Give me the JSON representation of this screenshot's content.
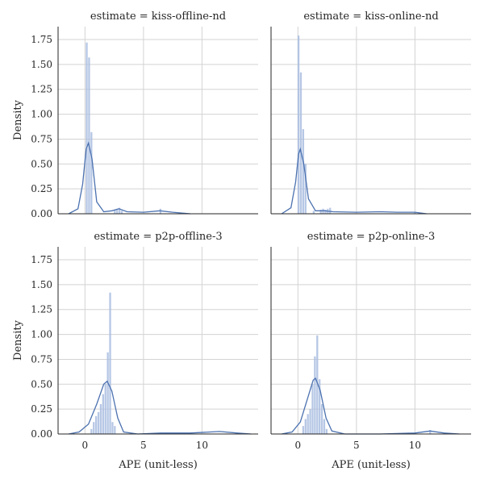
{
  "chart_data": {
    "type": "histogram-kde-facet",
    "xlabel": "APE (unit-less)",
    "ylabel": "Density",
    "xlim": [
      -2.3,
      14.8
    ],
    "ylim": [
      0,
      1.88
    ],
    "xticks": [
      0,
      5,
      10
    ],
    "yticks": [
      0.0,
      0.25,
      0.5,
      0.75,
      1.0,
      1.25,
      1.5,
      1.75
    ],
    "ytick_labels": [
      "0.00",
      "0.25",
      "0.50",
      "0.75",
      "1.00",
      "1.25",
      "1.50",
      "1.75"
    ],
    "grid": true,
    "bar_color": "#a9bde0",
    "line_color": "#4c72b0",
    "panels": [
      {
        "title": "estimate = kiss-offline-nd",
        "bins": [
          {
            "x0": 0.05,
            "x1": 0.25,
            "density": 1.72
          },
          {
            "x0": 0.25,
            "x1": 0.45,
            "density": 1.57
          },
          {
            "x0": 0.45,
            "x1": 0.65,
            "density": 0.82
          },
          {
            "x0": 2.45,
            "x1": 2.65,
            "density": 0.04
          },
          {
            "x0": 2.65,
            "x1": 2.85,
            "density": 0.05
          },
          {
            "x0": 2.85,
            "x1": 3.05,
            "density": 0.06
          },
          {
            "x0": 3.05,
            "x1": 3.25,
            "density": 0.03
          },
          {
            "x0": 6.35,
            "x1": 6.55,
            "density": 0.05
          }
        ],
        "kde": [
          {
            "x": -1.4,
            "y": 0.0
          },
          {
            "x": -0.6,
            "y": 0.05
          },
          {
            "x": -0.2,
            "y": 0.3
          },
          {
            "x": 0.1,
            "y": 0.65
          },
          {
            "x": 0.3,
            "y": 0.71
          },
          {
            "x": 0.6,
            "y": 0.55
          },
          {
            "x": 1.0,
            "y": 0.12
          },
          {
            "x": 1.6,
            "y": 0.02
          },
          {
            "x": 2.3,
            "y": 0.03
          },
          {
            "x": 2.9,
            "y": 0.05
          },
          {
            "x": 3.6,
            "y": 0.02
          },
          {
            "x": 5.0,
            "y": 0.015
          },
          {
            "x": 6.4,
            "y": 0.03
          },
          {
            "x": 7.5,
            "y": 0.015
          },
          {
            "x": 9.0,
            "y": 0.0
          }
        ]
      },
      {
        "title": "estimate = kiss-online-nd",
        "bins": [
          {
            "x0": -0.05,
            "x1": 0.15,
            "density": 1.79
          },
          {
            "x0": 0.15,
            "x1": 0.35,
            "density": 1.42
          },
          {
            "x0": 0.35,
            "x1": 0.55,
            "density": 0.85
          },
          {
            "x0": 0.55,
            "x1": 0.75,
            "density": 0.5
          },
          {
            "x0": 1.25,
            "x1": 1.45,
            "density": 0.03
          },
          {
            "x0": 1.85,
            "x1": 2.05,
            "density": 0.04
          },
          {
            "x0": 2.05,
            "x1": 2.25,
            "density": 0.05
          },
          {
            "x0": 2.25,
            "x1": 2.45,
            "density": 0.04
          },
          {
            "x0": 2.45,
            "x1": 2.65,
            "density": 0.05
          },
          {
            "x0": 2.65,
            "x1": 2.85,
            "density": 0.06
          },
          {
            "x0": 9.9,
            "x1": 10.1,
            "density": 0.02
          }
        ],
        "kde": [
          {
            "x": -1.4,
            "y": 0.0
          },
          {
            "x": -0.6,
            "y": 0.06
          },
          {
            "x": -0.2,
            "y": 0.32
          },
          {
            "x": 0.05,
            "y": 0.6
          },
          {
            "x": 0.2,
            "y": 0.65
          },
          {
            "x": 0.5,
            "y": 0.5
          },
          {
            "x": 0.9,
            "y": 0.15
          },
          {
            "x": 1.5,
            "y": 0.03
          },
          {
            "x": 2.3,
            "y": 0.03
          },
          {
            "x": 3.0,
            "y": 0.02
          },
          {
            "x": 5.0,
            "y": 0.015
          },
          {
            "x": 7.0,
            "y": 0.02
          },
          {
            "x": 8.5,
            "y": 0.015
          },
          {
            "x": 10.0,
            "y": 0.015
          },
          {
            "x": 11.0,
            "y": 0.0
          }
        ]
      },
      {
        "title": "estimate = p2p-offline-3",
        "bins": [
          {
            "x0": 0.45,
            "x1": 0.65,
            "density": 0.05
          },
          {
            "x0": 0.65,
            "x1": 0.85,
            "density": 0.12
          },
          {
            "x0": 0.85,
            "x1": 1.05,
            "density": 0.18
          },
          {
            "x0": 1.05,
            "x1": 1.25,
            "density": 0.22
          },
          {
            "x0": 1.25,
            "x1": 1.45,
            "density": 0.3
          },
          {
            "x0": 1.45,
            "x1": 1.65,
            "density": 0.4
          },
          {
            "x0": 1.65,
            "x1": 1.85,
            "density": 0.5
          },
          {
            "x0": 1.85,
            "x1": 2.05,
            "density": 0.82
          },
          {
            "x0": 2.05,
            "x1": 2.25,
            "density": 1.42
          },
          {
            "x0": 2.25,
            "x1": 2.45,
            "density": 0.12
          },
          {
            "x0": 2.45,
            "x1": 2.65,
            "density": 0.08
          }
        ],
        "kde": [
          {
            "x": -1.4,
            "y": 0.0
          },
          {
            "x": -0.5,
            "y": 0.02
          },
          {
            "x": 0.3,
            "y": 0.1
          },
          {
            "x": 1.0,
            "y": 0.3
          },
          {
            "x": 1.6,
            "y": 0.5
          },
          {
            "x": 1.9,
            "y": 0.53
          },
          {
            "x": 2.3,
            "y": 0.43
          },
          {
            "x": 2.8,
            "y": 0.16
          },
          {
            "x": 3.3,
            "y": 0.02
          },
          {
            "x": 4.5,
            "y": 0.0
          },
          {
            "x": 6.5,
            "y": 0.01
          },
          {
            "x": 9.0,
            "y": 0.01
          },
          {
            "x": 11.5,
            "y": 0.025
          },
          {
            "x": 13.0,
            "y": 0.01
          },
          {
            "x": 14.2,
            "y": 0.0
          }
        ]
      },
      {
        "title": "estimate = p2p-online-3",
        "bins": [
          {
            "x0": 0.35,
            "x1": 0.55,
            "density": 0.08
          },
          {
            "x0": 0.55,
            "x1": 0.75,
            "density": 0.15
          },
          {
            "x0": 0.75,
            "x1": 0.95,
            "density": 0.2
          },
          {
            "x0": 0.95,
            "x1": 1.15,
            "density": 0.25
          },
          {
            "x0": 1.15,
            "x1": 1.35,
            "density": 0.5
          },
          {
            "x0": 1.35,
            "x1": 1.55,
            "density": 0.78
          },
          {
            "x0": 1.55,
            "x1": 1.75,
            "density": 0.99
          },
          {
            "x0": 1.75,
            "x1": 1.95,
            "density": 0.55
          },
          {
            "x0": 1.95,
            "x1": 2.15,
            "density": 0.3
          },
          {
            "x0": 2.15,
            "x1": 2.35,
            "density": 0.15
          },
          {
            "x0": 2.35,
            "x1": 2.55,
            "density": 0.05
          },
          {
            "x0": 11.2,
            "x1": 11.4,
            "density": 0.04
          }
        ],
        "kde": [
          {
            "x": -1.4,
            "y": 0.0
          },
          {
            "x": -0.5,
            "y": 0.02
          },
          {
            "x": 0.2,
            "y": 0.12
          },
          {
            "x": 0.8,
            "y": 0.35
          },
          {
            "x": 1.3,
            "y": 0.54
          },
          {
            "x": 1.5,
            "y": 0.56
          },
          {
            "x": 1.9,
            "y": 0.44
          },
          {
            "x": 2.4,
            "y": 0.16
          },
          {
            "x": 2.9,
            "y": 0.03
          },
          {
            "x": 4.0,
            "y": 0.0
          },
          {
            "x": 7.0,
            "y": 0.0
          },
          {
            "x": 10.0,
            "y": 0.01
          },
          {
            "x": 11.3,
            "y": 0.03
          },
          {
            "x": 12.5,
            "y": 0.01
          },
          {
            "x": 13.8,
            "y": 0.0
          }
        ]
      }
    ]
  }
}
